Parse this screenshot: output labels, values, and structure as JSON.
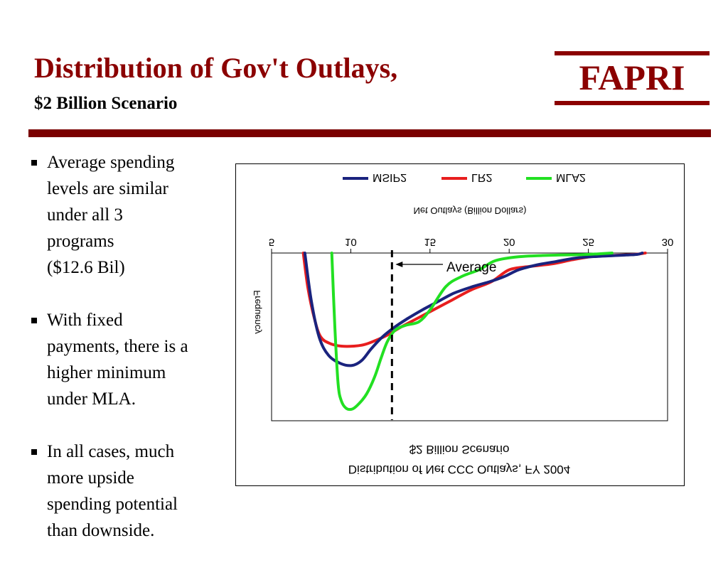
{
  "slide": {
    "title": "Distribution of Gov't Outlays,",
    "subtitle": "$2 Billion Scenario",
    "logo": "FAPRI",
    "colors": {
      "title": "#8b0000",
      "divider": "#7a0000"
    }
  },
  "bullets": [
    {
      "lines": [
        "Average spending",
        "levels are similar",
        "under all 3",
        "programs",
        "($12.6 Bil)"
      ]
    },
    {
      "lines": [
        "With fixed",
        "payments, there is a",
        "higher minimum",
        "under MLA."
      ]
    },
    {
      "lines": [
        "In all cases, much",
        "more upside",
        "spending potential",
        "than downside."
      ]
    }
  ],
  "chart_data": {
    "type": "line",
    "rendered_upside_down": true,
    "title": "Distribution of Net CCC Outlays, FY 2004",
    "subtitle": "$2 Billion Scenario",
    "xlabel": "Net Outlays (Billion Dollars)",
    "ylabel": "Frequency",
    "xlim": [
      5,
      30
    ],
    "xticks": [
      "5",
      "10",
      "15",
      "20",
      "25",
      "30"
    ],
    "ylim": [
      0,
      1
    ],
    "grid": false,
    "legend_position": "top",
    "annotation": {
      "text": "Average",
      "x": 12.6
    },
    "series": [
      {
        "name": "MSIP2",
        "color": "#1a237e",
        "x": [
          7.1,
          7.5,
          8.0,
          8.6,
          9.4,
          10.1,
          10.7,
          11.3,
          12.0,
          12.8,
          13.6,
          14.5,
          15.5,
          16.5,
          17.7,
          18.8,
          19.7,
          20.6,
          21.8,
          23.0,
          24.2,
          25.6,
          26.7,
          27.4,
          28.1,
          28.4
        ],
        "y": [
          0.0,
          0.28,
          0.5,
          0.61,
          0.66,
          0.67,
          0.64,
          0.57,
          0.5,
          0.44,
          0.39,
          0.34,
          0.29,
          0.24,
          0.2,
          0.17,
          0.14,
          0.1,
          0.07,
          0.05,
          0.03,
          0.02,
          0.015,
          0.012,
          0.008,
          0.0
        ]
      },
      {
        "name": "LR2",
        "color": "#e81e1e",
        "x": [
          7.0,
          7.3,
          7.7,
          8.1,
          8.7,
          9.4,
          10.2,
          10.9,
          11.6,
          12.3,
          13.2,
          14.2,
          15.2,
          16.4,
          17.6,
          18.9,
          20.0,
          21.3,
          22.7,
          24.0,
          25.3,
          26.5,
          27.5,
          28.2,
          28.6
        ],
        "y": [
          0.0,
          0.21,
          0.39,
          0.5,
          0.54,
          0.555,
          0.555,
          0.545,
          0.52,
          0.49,
          0.44,
          0.39,
          0.34,
          0.28,
          0.22,
          0.17,
          0.1,
          0.08,
          0.065,
          0.04,
          0.02,
          0.015,
          0.01,
          0.006,
          0.0
        ]
      },
      {
        "name": "MLA2",
        "color": "#22e022",
        "x": [
          8.8,
          9.0,
          9.2,
          9.4,
          9.7,
          10.1,
          10.5,
          11.0,
          11.5,
          11.9,
          12.3,
          12.8,
          13.5,
          14.3,
          15.0,
          16.0,
          17.0,
          18.1,
          19.0,
          19.9,
          20.9,
          22.1,
          23.3,
          24.5,
          25.6,
          26.5
        ],
        "y": [
          0.0,
          0.45,
          0.78,
          0.88,
          0.925,
          0.93,
          0.9,
          0.84,
          0.74,
          0.63,
          0.53,
          0.46,
          0.43,
          0.41,
          0.34,
          0.2,
          0.14,
          0.1,
          0.05,
          0.03,
          0.02,
          0.015,
          0.012,
          0.01,
          0.005,
          0.0
        ]
      }
    ]
  }
}
